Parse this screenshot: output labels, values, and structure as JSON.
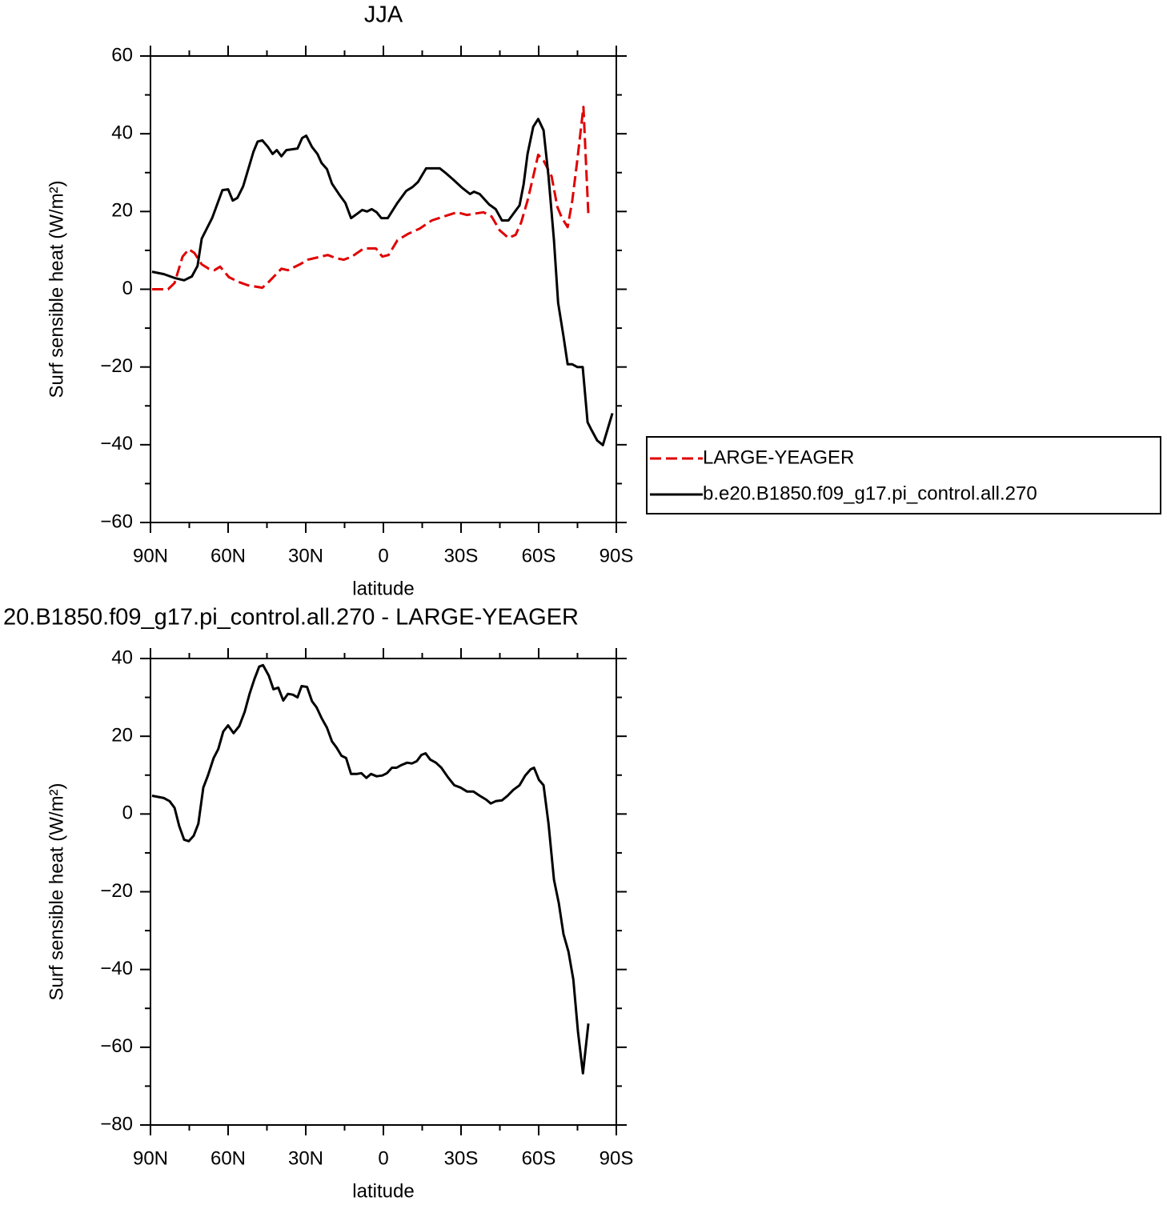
{
  "chart_data": [
    {
      "type": "line",
      "title": "JJA",
      "x_label": "latitude",
      "y_label": "Surf sensible heat (W/m²)",
      "xlim": [
        90,
        -90
      ],
      "xticks": [
        {
          "value": 90,
          "label": "90N"
        },
        {
          "value": 60,
          "label": "60N"
        },
        {
          "value": 30,
          "label": "30N"
        },
        0,
        {
          "value": -30,
          "label": "30S"
        },
        {
          "value": -60,
          "label": "60S"
        },
        {
          "value": -90,
          "label": "90S"
        }
      ],
      "ylim": [
        -60,
        60
      ],
      "yticks": [
        -60,
        -40,
        -20,
        0,
        20,
        40,
        60
      ],
      "legend": "right",
      "series": [
        {
          "name": "LARGE-YEAGER",
          "color": "#e00000",
          "linestyle": "dashed",
          "x": [
            89.4,
            83.2,
            80.7,
            77.6,
            75.2,
            73,
            70.2,
            67.5,
            65.3,
            63.1,
            59.7,
            56,
            52.3,
            46.8,
            44.3,
            39.4,
            36.9,
            32.3,
            29.2,
            21.5,
            18.4,
            15.3,
            12.2,
            7.6,
            2.9,
            0.4,
            -2,
            -5.4,
            -9.4,
            -14,
            -18.7,
            -23.3,
            -28.5,
            -32.3,
            -35.6,
            -38.7,
            -41.8,
            -44.9,
            -48.3,
            -51.1,
            -53.2,
            -55.7,
            -57.9,
            -59.8,
            -61.9,
            -65,
            -67.2,
            -69,
            -71.2,
            -73,
            -74.9,
            -77.3,
            -79.2
          ],
          "values": [
            0,
            0,
            1.6,
            8.4,
            10.3,
            9.3,
            6.4,
            5.3,
            4.9,
            5.8,
            3.1,
            1.9,
            1,
            0.4,
            1.9,
            5.3,
            4.9,
            6.4,
            7.6,
            8.8,
            8,
            7.6,
            8.4,
            10.5,
            10.5,
            8.4,
            8.8,
            12.6,
            14.2,
            15.6,
            17.7,
            18.7,
            19.8,
            19.1,
            19.5,
            19.8,
            18.7,
            15.2,
            13.2,
            14,
            17.1,
            22.8,
            29,
            34.6,
            33.1,
            29,
            21.2,
            18.3,
            16,
            22.8,
            33.1,
            46.9,
            19.1
          ]
        },
        {
          "name": "b.e20.B1850.f09_g17.pi_control.all.270",
          "color": "#000000",
          "linestyle": "solid",
          "x": [
            89.4,
            84.8,
            80.7,
            77,
            74,
            71.8,
            70.2,
            66.2,
            62.2,
            60,
            58.2,
            56.4,
            54.2,
            50.2,
            48.6,
            46.8,
            44.6,
            42.8,
            41.2,
            39.4,
            37.5,
            33.2,
            31.4,
            29.8,
            27.6,
            25.5,
            23.9,
            21.8,
            19.9,
            16.8,
            14.7,
            12.5,
            10,
            8.2,
            6.3,
            4.5,
            2.6,
            0.8,
            -1.7,
            -5.4,
            -8.8,
            -11.3,
            -13.4,
            -16.5,
            -21.8,
            -23.9,
            -27,
            -30.4,
            -33.5,
            -35,
            -37.2,
            -40.9,
            -43.4,
            -45.8,
            -48.3,
            -52.6,
            -54.2,
            -55.7,
            -57.9,
            -59.8,
            -61.9,
            -63.8,
            -65.9,
            -67.5,
            -69.6,
            -71.2,
            -73,
            -74.9,
            -77,
            -78.9,
            -80.4,
            -82.6,
            -84.8,
            -88.5
          ],
          "values": [
            4.5,
            3.9,
            2.9,
            2.3,
            3.3,
            6,
            13,
            18.3,
            25.5,
            25.7,
            22.8,
            23.5,
            26.5,
            35.4,
            38,
            38.3,
            36.6,
            34.8,
            35.8,
            34.2,
            35.8,
            36.2,
            38.9,
            39.5,
            36.6,
            34.8,
            32.5,
            30.9,
            27.2,
            24.1,
            22.2,
            18.3,
            19.5,
            20.4,
            20,
            20.6,
            19.8,
            18.3,
            18.3,
            22.2,
            25.3,
            26.3,
            27.6,
            31.1,
            31.1,
            30,
            28.2,
            26.1,
            24.5,
            25.1,
            24.5,
            21.8,
            20.6,
            17.7,
            17.7,
            21.6,
            27,
            34.8,
            41.8,
            43.8,
            40.9,
            29,
            12.6,
            -3.5,
            -12.1,
            -19.3,
            -19.3,
            -20,
            -20,
            -34.2,
            -36.2,
            -38.9,
            -40.1,
            -31.9
          ]
        }
      ]
    },
    {
      "type": "line",
      "title": "20.B1850.f09_g17.pi_control.all.270 - LARGE-YEAGER",
      "x_label": "latitude",
      "y_label": "Surf sensible heat (W/m²)",
      "xlim": [
        90,
        -90
      ],
      "xticks": [
        {
          "value": 90,
          "label": "90N"
        },
        {
          "value": 60,
          "label": "60N"
        },
        {
          "value": 30,
          "label": "30N"
        },
        0,
        {
          "value": -30,
          "label": "30S"
        },
        {
          "value": -60,
          "label": "60S"
        },
        {
          "value": -90,
          "label": "90S"
        }
      ],
      "ylim": [
        -80,
        40
      ],
      "yticks": [
        -80,
        -60,
        -40,
        -20,
        0,
        20,
        40
      ],
      "series": [
        {
          "color": "#000000",
          "linestyle": "solid",
          "x": [
            89.4,
            84.8,
            82.6,
            80.7,
            78.9,
            77,
            75.2,
            73.3,
            71.5,
            69.6,
            67.8,
            65.6,
            63.8,
            61.9,
            60,
            57.9,
            55.7,
            53.6,
            51.7,
            49.9,
            48,
            46.5,
            44.3,
            42.5,
            40.6,
            38.7,
            36.9,
            35,
            33.2,
            31.6,
            29.5,
            27.6,
            25.8,
            23.9,
            21.8,
            19.9,
            18.1,
            16.2,
            14.4,
            12.5,
            10.4,
            8.5,
            6.6,
            4.8,
            2.6,
            0.4,
            -1.4,
            -3.3,
            -5.1,
            -7,
            -9.2,
            -11,
            -12.9,
            -14.7,
            -16.3,
            -18.1,
            -20.3,
            -22.4,
            -24.9,
            -27.4,
            -29.8,
            -32.3,
            -34.8,
            -37.2,
            -39.7,
            -41.5,
            -43.4,
            -45.8,
            -48,
            -50.2,
            -52.6,
            -54.8,
            -56.9,
            -58.2,
            -60.1,
            -61.9,
            -63.8,
            -65.9,
            -67.8,
            -69.6,
            -71.5,
            -73.4,
            -75.2,
            -77.1,
            -79.2
          ],
          "values": [
            4.7,
            4.1,
            3.3,
            1.6,
            -3.1,
            -6.6,
            -7,
            -5.6,
            -2.5,
            6.8,
            9.9,
            14.4,
            16.7,
            21.2,
            22.8,
            20.8,
            22.6,
            26.3,
            30.9,
            34.6,
            37.9,
            38.3,
            35.6,
            32.1,
            32.5,
            29.2,
            30.9,
            30.7,
            30,
            32.9,
            32.7,
            29,
            27.4,
            24.7,
            22.2,
            18.7,
            17.1,
            15,
            14.4,
            10.3,
            10.3,
            10.5,
            9.3,
            10.3,
            9.7,
            9.9,
            10.5,
            11.9,
            11.9,
            12.6,
            13.2,
            13,
            13.6,
            15.2,
            15.6,
            14,
            13.2,
            11.9,
            9.5,
            7.4,
            6.8,
            5.8,
            5.8,
            4.7,
            3.7,
            2.7,
            3.3,
            3.5,
            4.7,
            6.2,
            7.4,
            9.9,
            11.5,
            11.9,
            8.8,
            7.4,
            -2.5,
            -16.9,
            -23,
            -30.9,
            -35.4,
            -42.6,
            -56,
            -66.7,
            -53.9
          ]
        }
      ]
    }
  ]
}
